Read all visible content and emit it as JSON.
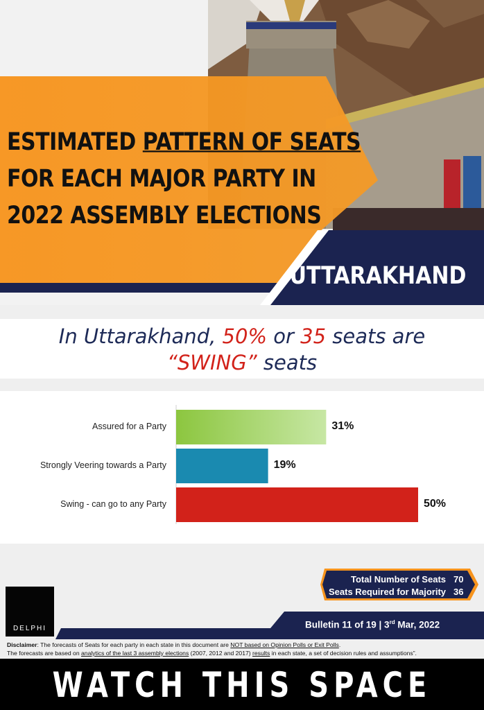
{
  "header": {
    "title_line1_a": "ESTIMATED ",
    "title_line1_b": "PATTERN OF SEATS",
    "title_line2": "FOR EACH MAJOR PARTY IN",
    "title_line3": "2022 ASSEMBLY ELECTIONS",
    "state": "UTTARAKHAND"
  },
  "headline": {
    "part1": "In Uttarakhand, ",
    "pct": "50%",
    "part2": " or ",
    "seats": "35",
    "part3": " seats are",
    "swing": "“SWING”",
    "part4": " seats"
  },
  "chart_data": {
    "type": "bar",
    "orientation": "horizontal",
    "categories": [
      "Assured for a Party",
      "Strongly Veering towards a Party",
      "Swing - can go to any Party"
    ],
    "values": [
      31,
      19,
      50
    ],
    "value_labels": [
      "31%",
      "19%",
      "50%"
    ],
    "colors": [
      "#8cc63f",
      "#1a8ab0",
      "#d2221a"
    ],
    "xlim": [
      0,
      50
    ]
  },
  "summary": {
    "total_label": "Total Number of Seats",
    "total_value": "70",
    "majority_label": "Seats Required for Majority",
    "majority_value": "36"
  },
  "logo": {
    "text": "DELPHI"
  },
  "bulletin": {
    "part1": "Bulletin 11 of 19 | 3",
    "sup": "rd",
    "part2": " Mar, 2022"
  },
  "disclaimer": {
    "label": "Disclaimer",
    "l1_a": ": The forecasts of Seats for each party in each state in this document are ",
    "l1_u": "NOT based on Opinion Polls or Exit Polls",
    "l1_b": ".",
    "l2_a": "The forecasts are based on ",
    "l2_u1": "analytics of the last 3 assembly elections",
    "l2_b": " (2007, 2012 and 2017) ",
    "l2_u2": "results",
    "l2_c": " in each state, a set of decision rules and assumptions”."
  },
  "footer": {
    "text": "WATCH THIS SPACE"
  },
  "colors": {
    "orange": "#f7941d",
    "navy": "#1b2350",
    "red_accent": "#d2221a"
  }
}
